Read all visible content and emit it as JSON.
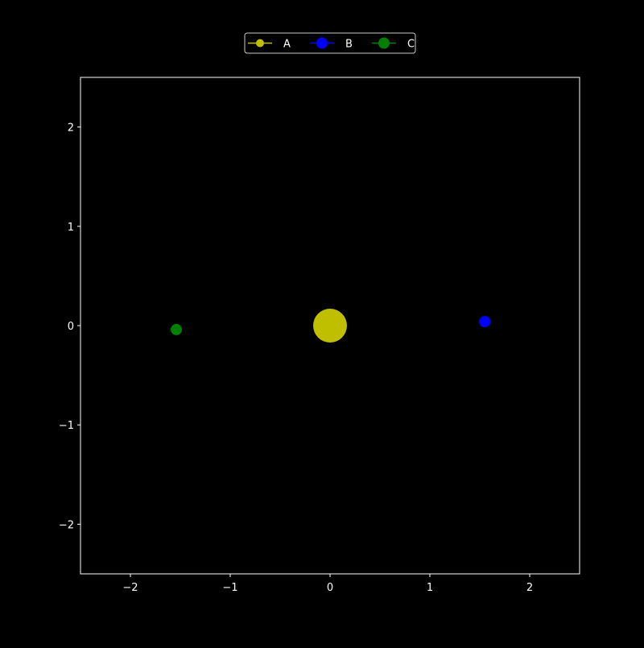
{
  "chart_data": {
    "type": "scatter",
    "title": "",
    "xlabel": "",
    "ylabel": "",
    "xlim": [
      -2.5,
      2.5
    ],
    "ylim": [
      -2.5,
      2.5
    ],
    "x_ticks": [
      -2,
      -1,
      0,
      1,
      2
    ],
    "y_ticks": [
      -2,
      -1,
      0,
      1,
      2
    ],
    "x_tick_labels": [
      "−2",
      "−1",
      "0",
      "1",
      "2"
    ],
    "y_tick_labels": [
      "−2",
      "−1",
      "0",
      "1",
      "2"
    ],
    "grid": false,
    "legend_position": "top-center",
    "background_color": "#000000",
    "foreground_color": "#ffffff",
    "series": [
      {
        "name": "A",
        "color": "#bfbf00",
        "x": [
          0.0
        ],
        "y": [
          0.0
        ],
        "marker_size": "large"
      },
      {
        "name": "B",
        "color": "#0000ff",
        "x": [
          1.55
        ],
        "y": [
          0.04
        ],
        "marker_size": "small"
      },
      {
        "name": "C",
        "color": "#007f00",
        "x": [
          -1.54
        ],
        "y": [
          -0.04
        ],
        "marker_size": "small"
      }
    ]
  }
}
